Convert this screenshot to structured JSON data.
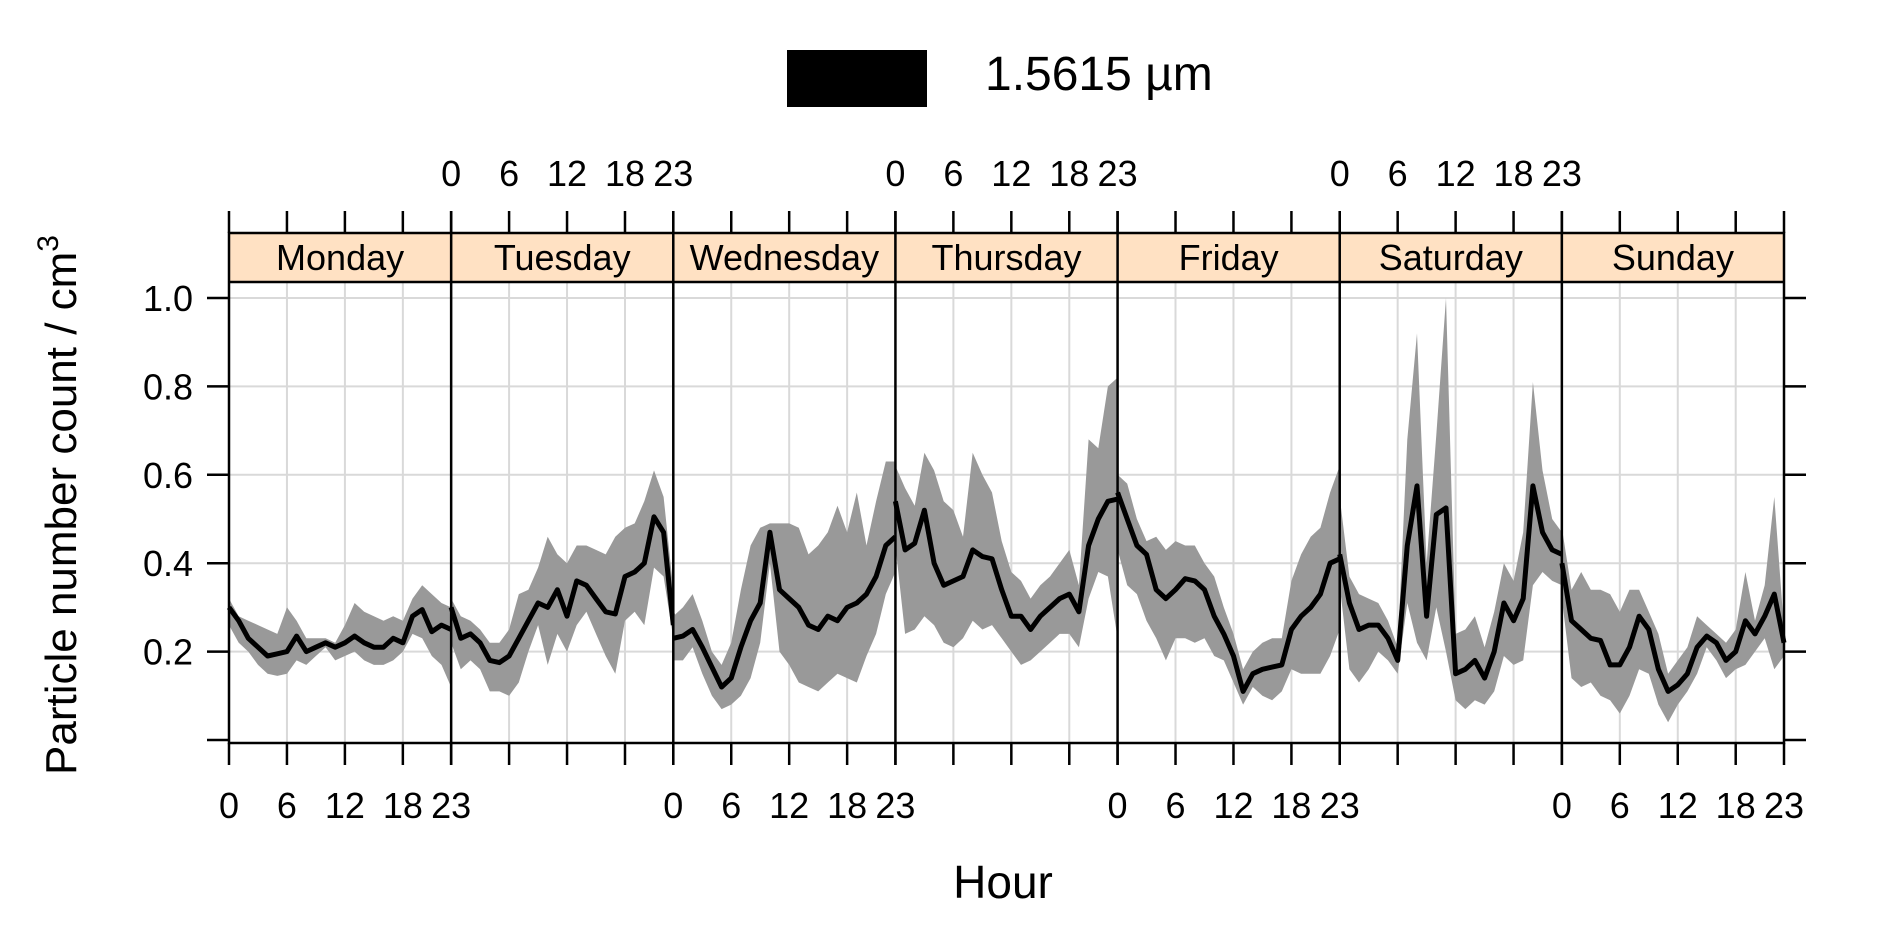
{
  "chart_data": {
    "type": "line",
    "legend": {
      "label": "1.5615 µm",
      "swatch_color": "#000000",
      "position": "top-center"
    },
    "xlabel": "Hour",
    "ylabel": "Particle number count / cm",
    "ylabel_superscript": "3",
    "ylim": [
      0.0,
      1.12
    ],
    "yticks": [
      0.2,
      0.4,
      0.6,
      0.8,
      1.0
    ],
    "ytick_labels": [
      "0.2",
      "0.4",
      "0.6",
      "0.8",
      "1.0"
    ],
    "x_per_panel": [
      0,
      23
    ],
    "xtick_labels": [
      "0",
      "6",
      "12",
      "18",
      "23"
    ],
    "xticks_values": [
      0,
      6,
      12,
      18,
      23
    ],
    "grid": true,
    "panel_strip_color": "#ffe1c3",
    "band_color": "#999999",
    "line_color": "#000000",
    "panels": [
      {
        "day": "Monday",
        "x": [
          0,
          1,
          2,
          3,
          4,
          5,
          6,
          7,
          8,
          9,
          10,
          11,
          12,
          13,
          14,
          15,
          16,
          17,
          18,
          19,
          20,
          21,
          22,
          23
        ],
        "mean": [
          0.3,
          0.27,
          0.23,
          0.21,
          0.19,
          0.195,
          0.2,
          0.235,
          0.2,
          0.21,
          0.22,
          0.21,
          0.22,
          0.235,
          0.22,
          0.21,
          0.21,
          0.23,
          0.22,
          0.28,
          0.295,
          0.245,
          0.26,
          0.25
        ],
        "lower": [
          0.26,
          0.22,
          0.2,
          0.17,
          0.15,
          0.145,
          0.15,
          0.18,
          0.17,
          0.19,
          0.21,
          0.18,
          0.19,
          0.2,
          0.18,
          0.17,
          0.17,
          0.18,
          0.2,
          0.24,
          0.23,
          0.19,
          0.17,
          0.12
        ],
        "upper": [
          0.32,
          0.28,
          0.27,
          0.26,
          0.25,
          0.24,
          0.3,
          0.27,
          0.23,
          0.23,
          0.23,
          0.22,
          0.26,
          0.31,
          0.29,
          0.28,
          0.27,
          0.28,
          0.27,
          0.32,
          0.35,
          0.33,
          0.31,
          0.3
        ]
      },
      {
        "day": "Tuesday",
        "x": [
          0,
          1,
          2,
          3,
          4,
          5,
          6,
          7,
          8,
          9,
          10,
          11,
          12,
          13,
          14,
          15,
          16,
          17,
          18,
          19,
          20,
          21,
          22,
          23
        ],
        "mean": [
          0.3,
          0.23,
          0.24,
          0.22,
          0.18,
          0.175,
          0.19,
          0.23,
          0.27,
          0.31,
          0.3,
          0.34,
          0.28,
          0.36,
          0.35,
          0.32,
          0.29,
          0.285,
          0.37,
          0.38,
          0.4,
          0.505,
          0.47,
          0.26
        ],
        "lower": [
          0.22,
          0.16,
          0.18,
          0.16,
          0.11,
          0.11,
          0.1,
          0.13,
          0.2,
          0.26,
          0.17,
          0.24,
          0.2,
          0.26,
          0.29,
          0.24,
          0.19,
          0.15,
          0.27,
          0.29,
          0.26,
          0.39,
          0.37,
          0.23
        ],
        "upper": [
          0.32,
          0.28,
          0.27,
          0.25,
          0.22,
          0.22,
          0.25,
          0.33,
          0.34,
          0.39,
          0.46,
          0.42,
          0.4,
          0.44,
          0.44,
          0.43,
          0.42,
          0.46,
          0.48,
          0.49,
          0.54,
          0.61,
          0.55,
          0.34
        ]
      },
      {
        "day": "Wednesday",
        "x": [
          0,
          1,
          2,
          3,
          4,
          5,
          6,
          7,
          8,
          9,
          10,
          11,
          12,
          13,
          14,
          15,
          16,
          17,
          18,
          19,
          20,
          21,
          22,
          23
        ],
        "mean": [
          0.23,
          0.235,
          0.25,
          0.21,
          0.165,
          0.12,
          0.14,
          0.21,
          0.27,
          0.31,
          0.47,
          0.34,
          0.32,
          0.3,
          0.26,
          0.25,
          0.28,
          0.27,
          0.3,
          0.31,
          0.33,
          0.37,
          0.44,
          0.46
        ],
        "lower": [
          0.18,
          0.18,
          0.21,
          0.15,
          0.1,
          0.07,
          0.08,
          0.1,
          0.14,
          0.22,
          0.4,
          0.2,
          0.17,
          0.13,
          0.12,
          0.11,
          0.13,
          0.15,
          0.14,
          0.13,
          0.19,
          0.24,
          0.33,
          0.38
        ],
        "upper": [
          0.28,
          0.3,
          0.33,
          0.27,
          0.2,
          0.17,
          0.22,
          0.34,
          0.44,
          0.48,
          0.49,
          0.49,
          0.49,
          0.48,
          0.42,
          0.44,
          0.47,
          0.53,
          0.47,
          0.56,
          0.44,
          0.54,
          0.63,
          0.63
        ]
      },
      {
        "day": "Thursday",
        "x": [
          0,
          1,
          2,
          3,
          4,
          5,
          6,
          7,
          8,
          9,
          10,
          11,
          12,
          13,
          14,
          15,
          16,
          17,
          18,
          19,
          20,
          21,
          22,
          23
        ],
        "mean": [
          0.54,
          0.43,
          0.445,
          0.52,
          0.4,
          0.35,
          0.36,
          0.37,
          0.43,
          0.415,
          0.41,
          0.34,
          0.28,
          0.28,
          0.25,
          0.28,
          0.3,
          0.32,
          0.33,
          0.29,
          0.44,
          0.5,
          0.54,
          0.545
        ],
        "lower": [
          0.44,
          0.24,
          0.25,
          0.28,
          0.26,
          0.22,
          0.21,
          0.23,
          0.27,
          0.25,
          0.26,
          0.23,
          0.2,
          0.17,
          0.18,
          0.2,
          0.22,
          0.24,
          0.24,
          0.21,
          0.32,
          0.38,
          0.37,
          0.23
        ],
        "upper": [
          0.62,
          0.57,
          0.53,
          0.65,
          0.61,
          0.54,
          0.52,
          0.46,
          0.65,
          0.6,
          0.56,
          0.45,
          0.38,
          0.36,
          0.32,
          0.35,
          0.37,
          0.4,
          0.43,
          0.35,
          0.68,
          0.66,
          0.8,
          0.82
        ]
      },
      {
        "day": "Friday",
        "x": [
          0,
          1,
          2,
          3,
          4,
          5,
          6,
          7,
          8,
          9,
          10,
          11,
          12,
          13,
          14,
          15,
          16,
          17,
          18,
          19,
          20,
          21,
          22,
          23
        ],
        "mean": [
          0.56,
          0.5,
          0.44,
          0.42,
          0.34,
          0.32,
          0.34,
          0.365,
          0.36,
          0.34,
          0.28,
          0.24,
          0.19,
          0.11,
          0.15,
          0.16,
          0.165,
          0.17,
          0.25,
          0.28,
          0.3,
          0.33,
          0.4,
          0.41
        ],
        "lower": [
          0.43,
          0.35,
          0.33,
          0.27,
          0.23,
          0.18,
          0.23,
          0.23,
          0.22,
          0.23,
          0.19,
          0.18,
          0.13,
          0.08,
          0.12,
          0.1,
          0.09,
          0.11,
          0.16,
          0.15,
          0.15,
          0.15,
          0.19,
          0.25
        ],
        "upper": [
          0.6,
          0.58,
          0.5,
          0.45,
          0.46,
          0.43,
          0.45,
          0.44,
          0.44,
          0.4,
          0.37,
          0.3,
          0.24,
          0.16,
          0.2,
          0.22,
          0.23,
          0.23,
          0.36,
          0.42,
          0.46,
          0.48,
          0.56,
          0.62
        ]
      },
      {
        "day": "Saturday",
        "x": [
          0,
          1,
          2,
          3,
          4,
          5,
          6,
          7,
          8,
          9,
          10,
          11,
          12,
          13,
          14,
          15,
          16,
          17,
          18,
          19,
          20,
          21,
          22,
          23
        ],
        "mean": [
          0.42,
          0.31,
          0.25,
          0.26,
          0.26,
          0.23,
          0.18,
          0.44,
          0.575,
          0.28,
          0.51,
          0.525,
          0.15,
          0.16,
          0.18,
          0.14,
          0.2,
          0.31,
          0.27,
          0.32,
          0.575,
          0.47,
          0.43,
          0.42
        ],
        "lower": [
          0.35,
          0.16,
          0.13,
          0.16,
          0.2,
          0.18,
          0.15,
          0.31,
          0.22,
          0.18,
          0.3,
          0.2,
          0.09,
          0.07,
          0.09,
          0.08,
          0.11,
          0.19,
          0.17,
          0.18,
          0.35,
          0.38,
          0.36,
          0.35
        ],
        "upper": [
          0.55,
          0.37,
          0.33,
          0.32,
          0.31,
          0.27,
          0.21,
          0.68,
          0.92,
          0.4,
          0.69,
          1.0,
          0.24,
          0.25,
          0.28,
          0.21,
          0.29,
          0.4,
          0.36,
          0.47,
          0.81,
          0.61,
          0.5,
          0.47
        ]
      },
      {
        "day": "Sunday",
        "x": [
          0,
          1,
          2,
          3,
          4,
          5,
          6,
          7,
          8,
          9,
          10,
          11,
          12,
          13,
          14,
          15,
          16,
          17,
          18,
          19,
          20,
          21,
          22,
          23
        ],
        "mean": [
          0.4,
          0.27,
          0.25,
          0.23,
          0.225,
          0.17,
          0.17,
          0.21,
          0.28,
          0.25,
          0.16,
          0.11,
          0.125,
          0.15,
          0.21,
          0.235,
          0.22,
          0.18,
          0.2,
          0.27,
          0.24,
          0.28,
          0.33,
          0.22
        ],
        "lower": [
          0.32,
          0.14,
          0.12,
          0.13,
          0.1,
          0.09,
          0.06,
          0.1,
          0.16,
          0.15,
          0.08,
          0.04,
          0.08,
          0.11,
          0.15,
          0.21,
          0.18,
          0.14,
          0.16,
          0.17,
          0.2,
          0.23,
          0.16,
          0.19
        ],
        "upper": [
          0.48,
          0.34,
          0.38,
          0.34,
          0.34,
          0.33,
          0.29,
          0.34,
          0.34,
          0.29,
          0.24,
          0.15,
          0.18,
          0.21,
          0.28,
          0.26,
          0.24,
          0.22,
          0.25,
          0.38,
          0.27,
          0.35,
          0.55,
          0.25
        ]
      }
    ]
  }
}
